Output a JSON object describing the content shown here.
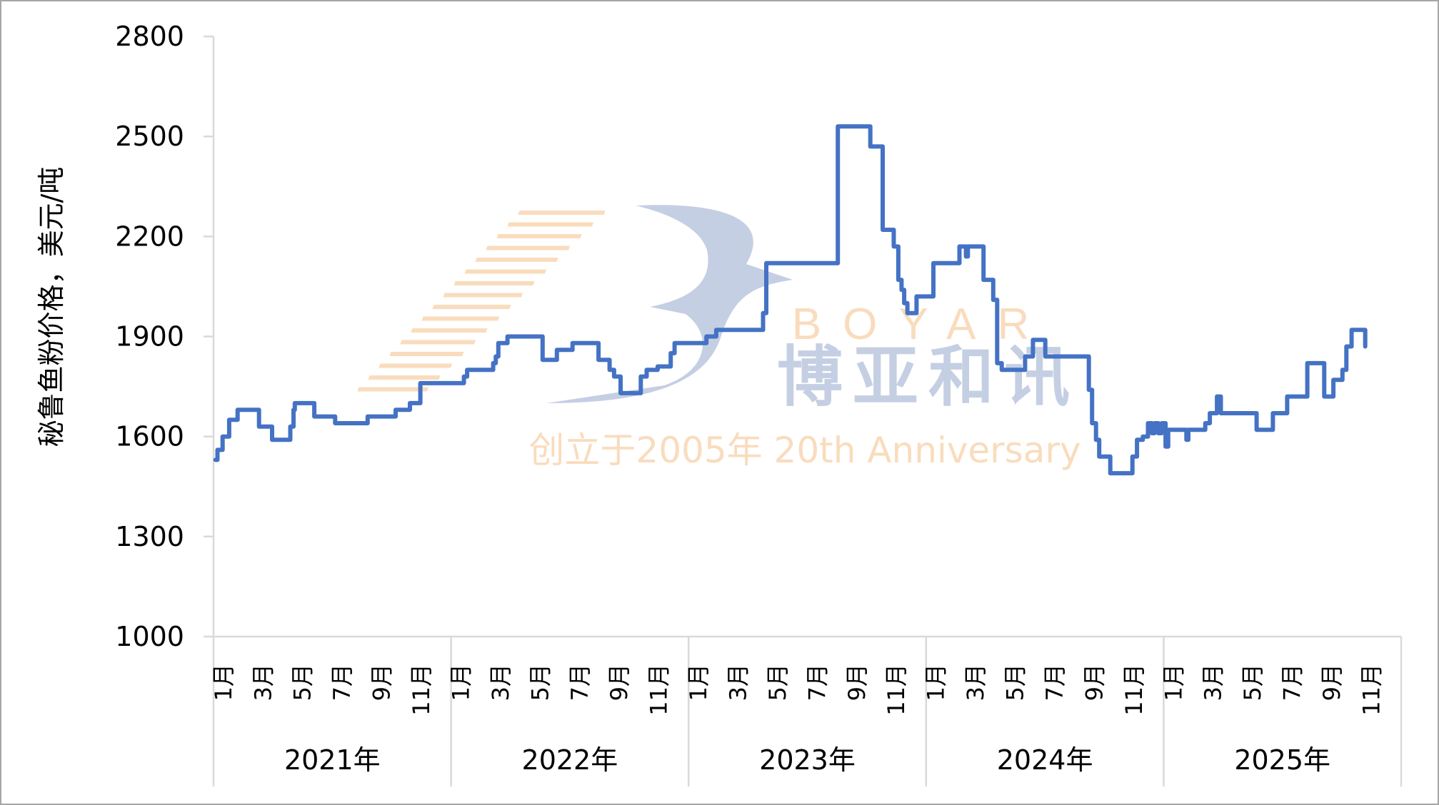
{
  "chart_data": {
    "type": "line",
    "ylabel": "秘鲁鱼粉价格，美元/吨",
    "xlabel": "",
    "ylim": [
      1000,
      2800
    ],
    "yticks": [
      1000,
      1300,
      1600,
      1900,
      2200,
      2500,
      2800
    ],
    "grid": false,
    "legend": "none",
    "step": true,
    "line_color": "#4472c4",
    "x_years": [
      "2021年",
      "2022年",
      "2023年",
      "2024年",
      "2025年"
    ],
    "x_month_labels": [
      "1月",
      "3月",
      "5月",
      "7月",
      "9月",
      "11月"
    ],
    "series": [
      {
        "points": [
          [
            "2021-01-04",
            1530
          ],
          [
            "2021-01-07",
            1560
          ],
          [
            "2021-01-15",
            1600
          ],
          [
            "2021-01-25",
            1650
          ],
          [
            "2021-02-07",
            1680
          ],
          [
            "2021-03-12",
            1630
          ],
          [
            "2021-04-01",
            1590
          ],
          [
            "2021-04-29",
            1630
          ],
          [
            "2021-05-04",
            1680
          ],
          [
            "2021-05-06",
            1700
          ],
          [
            "2021-06-05",
            1660
          ],
          [
            "2021-07-07",
            1640
          ],
          [
            "2021-08-26",
            1660
          ],
          [
            "2021-10-08",
            1680
          ],
          [
            "2021-10-30",
            1700
          ],
          [
            "2021-11-15",
            1760
          ],
          [
            "2022-01-21",
            1780
          ],
          [
            "2022-01-26",
            1800
          ],
          [
            "2022-03-07",
            1820
          ],
          [
            "2022-03-11",
            1840
          ],
          [
            "2022-03-15",
            1880
          ],
          [
            "2022-03-29",
            1900
          ],
          [
            "2022-05-22",
            1830
          ],
          [
            "2022-06-13",
            1860
          ],
          [
            "2022-07-07",
            1880
          ],
          [
            "2022-08-16",
            1830
          ],
          [
            "2022-09-02",
            1800
          ],
          [
            "2022-09-09",
            1780
          ],
          [
            "2022-09-19",
            1730
          ],
          [
            "2022-10-20",
            1780
          ],
          [
            "2022-10-29",
            1800
          ],
          [
            "2022-11-15",
            1810
          ],
          [
            "2022-12-05",
            1850
          ],
          [
            "2022-12-11",
            1880
          ],
          [
            "2023-01-29",
            1900
          ],
          [
            "2023-02-13",
            1920
          ],
          [
            "2023-04-26",
            1970
          ],
          [
            "2023-05-01",
            2120
          ],
          [
            "2023-08-19",
            2530
          ],
          [
            "2023-10-08",
            2470
          ],
          [
            "2023-10-27",
            2220
          ],
          [
            "2023-11-13",
            2170
          ],
          [
            "2023-11-20",
            2070
          ],
          [
            "2023-11-25",
            2040
          ],
          [
            "2023-11-29",
            2000
          ],
          [
            "2023-12-04",
            1970
          ],
          [
            "2023-12-18",
            2020
          ],
          [
            "2024-01-13",
            2120
          ],
          [
            "2024-02-22",
            2170
          ],
          [
            "2024-03-03",
            2140
          ],
          [
            "2024-03-06",
            2170
          ],
          [
            "2024-03-30",
            2070
          ],
          [
            "2024-04-14",
            2010
          ],
          [
            "2024-04-20",
            1820
          ],
          [
            "2024-04-27",
            1800
          ],
          [
            "2024-06-02",
            1840
          ],
          [
            "2024-06-14",
            1890
          ],
          [
            "2024-07-03",
            1840
          ],
          [
            "2024-09-08",
            1740
          ],
          [
            "2024-09-13",
            1640
          ],
          [
            "2024-09-19",
            1590
          ],
          [
            "2024-09-24",
            1540
          ],
          [
            "2024-10-11",
            1490
          ],
          [
            "2024-11-14",
            1540
          ],
          [
            "2024-11-21",
            1590
          ],
          [
            "2024-11-30",
            1600
          ],
          [
            "2024-12-08",
            1640
          ],
          [
            "2024-12-14",
            1610
          ],
          [
            "2024-12-18",
            1640
          ],
          [
            "2024-12-24",
            1610
          ],
          [
            "2024-12-29",
            1640
          ],
          [
            "2025-01-04",
            1570
          ],
          [
            "2025-01-08",
            1620
          ],
          [
            "2025-02-05",
            1590
          ],
          [
            "2025-02-08",
            1620
          ],
          [
            "2025-03-06",
            1640
          ],
          [
            "2025-03-13",
            1670
          ],
          [
            "2025-03-24",
            1720
          ],
          [
            "2025-03-30",
            1670
          ],
          [
            "2025-05-24",
            1620
          ],
          [
            "2025-06-18",
            1670
          ],
          [
            "2025-07-10",
            1720
          ],
          [
            "2025-08-10",
            1820
          ],
          [
            "2025-09-05",
            1720
          ],
          [
            "2025-09-19",
            1770
          ],
          [
            "2025-10-03",
            1800
          ],
          [
            "2025-10-09",
            1870
          ],
          [
            "2025-10-17",
            1920
          ],
          [
            "2025-11-05",
            1920
          ],
          [
            "2025-11-07",
            1870
          ]
        ]
      }
    ]
  },
  "watermark": {
    "brand_en": "BOYAR",
    "brand_cn": "博亚和讯",
    "tagline": "创立于2005年 20th Anniversary",
    "colors": {
      "blue": "#c5cfe3",
      "orange": "#f9dcbd"
    }
  }
}
